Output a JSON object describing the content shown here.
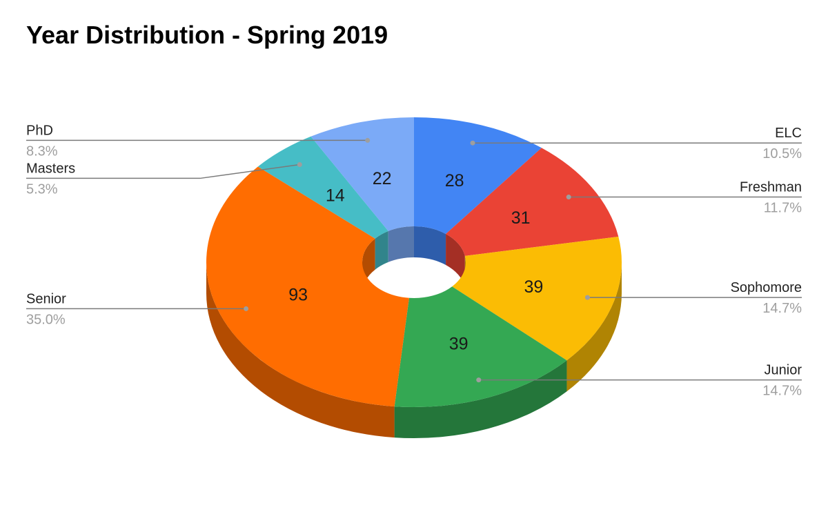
{
  "chart_data": {
    "type": "pie",
    "style": "3d-donut",
    "title": "Year Distribution - Spring 2019",
    "legend_position": "callouts",
    "slices": [
      {
        "label": "ELC",
        "value": 28,
        "percent": "10.5%",
        "color": "#4285f4"
      },
      {
        "label": "Freshman",
        "value": 31,
        "percent": "11.7%",
        "color": "#ea4335"
      },
      {
        "label": "Sophomore",
        "value": 39,
        "percent": "14.7%",
        "color": "#fbbc04"
      },
      {
        "label": "Junior",
        "value": 39,
        "percent": "14.7%",
        "color": "#34a853"
      },
      {
        "label": "Senior",
        "value": 93,
        "percent": "35.0%",
        "color": "#ff6d01"
      },
      {
        "label": "Masters",
        "value": 14,
        "percent": "5.3%",
        "color": "#46bdc6"
      },
      {
        "label": "PhD",
        "value": 22,
        "percent": "8.3%",
        "color": "#7baaf7"
      }
    ]
  }
}
